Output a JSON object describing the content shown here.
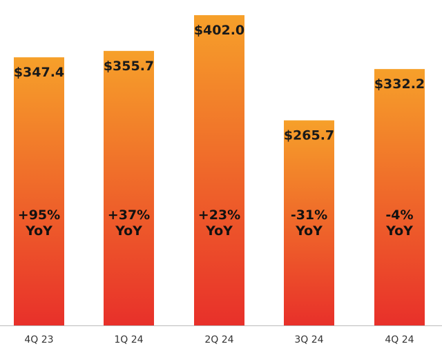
{
  "chart_data": {
    "type": "bar",
    "categories": [
      "4Q 23",
      "1Q 24",
      "2Q 24",
      "3Q 24",
      "4Q 24"
    ],
    "values": [
      347.4,
      355.7,
      402.0,
      265.7,
      332.2
    ],
    "value_labels": [
      "$347.4",
      "$355.7",
      "$402.0",
      "$265.7",
      "$332.2"
    ],
    "yoy_labels": [
      "+95%",
      "+37%",
      "+23%",
      "-31%",
      "-4%"
    ],
    "yoy_suffix": "YoY",
    "title": "",
    "xlabel": "",
    "ylabel": "",
    "ylim": [
      0,
      402.0
    ],
    "grid": false,
    "colors": {
      "gradient_top": "#F6A02A",
      "gradient_bottom": "#E8302A",
      "axis": "#bbbbbb"
    }
  }
}
